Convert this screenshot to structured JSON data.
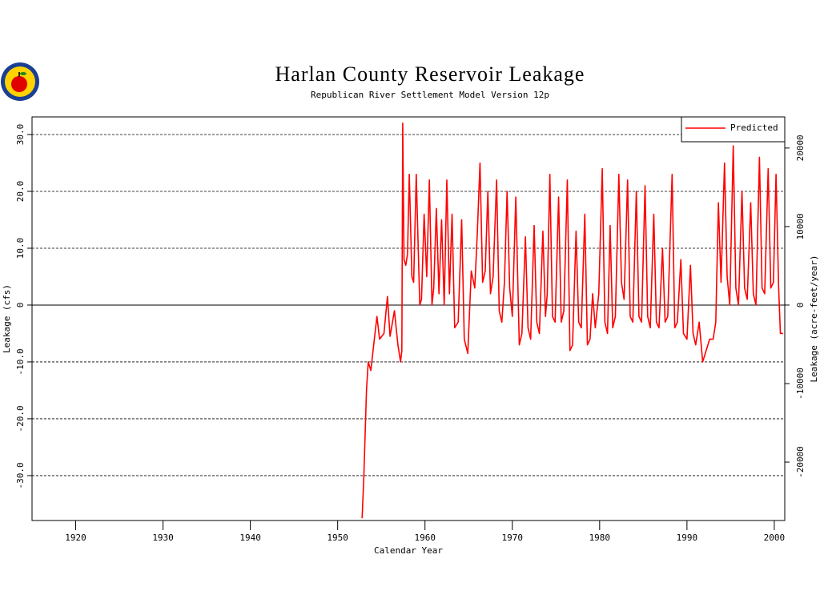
{
  "chart_data": {
    "type": "line",
    "title": "Harlan County Reservoir Leakage",
    "subtitle": "Republican River Settlement Model Version 12p",
    "x_label": "Calendar Year",
    "y_label": "Leakage (cfs)",
    "y2_label": "Leakage (acre-feet/year)",
    "legend": "upper right",
    "grid": true,
    "xlim": [
      1915,
      2001.2
    ],
    "ylim": [
      -37.9,
      33.1
    ],
    "y2lim": [
      -27440,
      23964
    ],
    "xticks": [
      1920,
      1930,
      1940,
      1950,
      1960,
      1970,
      1980,
      1990,
      2000
    ],
    "yticks": [
      {
        "value": -30,
        "label": "-30.0"
      },
      {
        "value": -20,
        "label": "-20.0"
      },
      {
        "value": -10,
        "label": "-10.0"
      },
      0,
      {
        "value": 10,
        "label": "10.0"
      },
      {
        "value": 20,
        "label": "20.0"
      },
      {
        "value": 30,
        "label": "30.0"
      }
    ],
    "y2ticks": [
      -20000,
      -10000,
      0,
      10000,
      20000
    ],
    "x": [
      1952.8,
      1953.0,
      1953.3,
      1953.5,
      1953.8,
      1954.2,
      1954.5,
      1954.8,
      1955.3,
      1955.7,
      1956.0,
      1956.5,
      1956.9,
      1957.2,
      1957.35,
      1957.45,
      1957.6,
      1957.8,
      1958.0,
      1958.2,
      1958.5,
      1958.7,
      1959.0,
      1959.4,
      1959.6,
      1959.9,
      1960.2,
      1960.5,
      1960.8,
      1961.0,
      1961.3,
      1961.6,
      1961.9,
      1962.2,
      1962.5,
      1962.8,
      1963.1,
      1963.4,
      1963.8,
      1964.2,
      1964.5,
      1964.9,
      1965.3,
      1965.7,
      1966.0,
      1966.3,
      1966.6,
      1966.9,
      1967.2,
      1967.5,
      1967.8,
      1968.2,
      1968.5,
      1968.8,
      1969.1,
      1969.4,
      1969.7,
      1970.0,
      1970.4,
      1970.8,
      1971.1,
      1971.5,
      1971.8,
      1972.1,
      1972.5,
      1972.8,
      1973.1,
      1973.5,
      1973.8,
      1974.0,
      1974.3,
      1974.6,
      1974.9,
      1975.3,
      1975.6,
      1975.9,
      1976.3,
      1976.6,
      1976.9,
      1977.3,
      1977.6,
      1977.9,
      1978.3,
      1978.6,
      1978.9,
      1979.2,
      1979.5,
      1979.9,
      1980.3,
      1980.6,
      1980.9,
      1981.2,
      1981.5,
      1981.8,
      1982.2,
      1982.5,
      1982.8,
      1983.2,
      1983.5,
      1983.8,
      1984.2,
      1984.5,
      1984.8,
      1985.2,
      1985.5,
      1985.8,
      1986.2,
      1986.5,
      1986.8,
      1987.2,
      1987.5,
      1987.8,
      1988.3,
      1988.6,
      1988.9,
      1989.3,
      1989.6,
      1990.0,
      1990.4,
      1990.7,
      1991.0,
      1991.4,
      1991.8,
      1992.2,
      1992.6,
      1993.0,
      1993.3,
      1993.6,
      1993.9,
      1994.3,
      1994.6,
      1994.9,
      1995.3,
      1995.6,
      1995.9,
      1996.3,
      1996.6,
      1996.9,
      1997.3,
      1997.6,
      1997.9,
      1998.3,
      1998.6,
      1998.9,
      1999.3,
      1999.6,
      1999.9,
      2000.2,
      2000.5,
      2000.7,
      2001.0
    ],
    "series": [
      {
        "name": "Predicted",
        "color": "#ff0000",
        "values": [
          -37.5,
          -30,
          -15,
          -10,
          -11.5,
          -6,
          -2,
          -6,
          -5,
          1.5,
          -5.5,
          -1,
          -7,
          -10,
          -8,
          32,
          8,
          7,
          9,
          23,
          5,
          4,
          23,
          0,
          1,
          16,
          5,
          22,
          0,
          3,
          17,
          2,
          15,
          0,
          22,
          2,
          16,
          -4,
          -3,
          15,
          -6,
          -8.5,
          6,
          3,
          13,
          25,
          4,
          6,
          20,
          2,
          5,
          22,
          -1,
          -3,
          4,
          20,
          3,
          -2,
          19,
          -7,
          -5,
          12,
          -4,
          -6,
          14,
          -3,
          -5,
          13,
          -2,
          2,
          23,
          -2,
          -3,
          19,
          -3,
          -1,
          22,
          -8,
          -7,
          13,
          -3,
          -4,
          16,
          -7,
          -6,
          2,
          -4,
          2,
          24,
          -3,
          -5,
          14,
          -4,
          -2,
          23,
          4,
          1,
          22,
          -2,
          -3,
          20,
          -2,
          -3,
          21,
          -2,
          -4,
          16,
          -3,
          -4,
          10,
          -3,
          -2,
          23,
          -4,
          -3,
          8,
          -5,
          -6,
          7,
          -5,
          -7,
          -3,
          -10,
          -8,
          -6,
          -6,
          -3,
          18,
          4,
          25,
          5,
          0,
          28,
          3,
          0,
          20,
          3,
          1,
          18,
          2,
          0,
          26,
          3,
          2,
          24,
          3,
          4,
          23,
          3,
          -5,
          -5
        ]
      }
    ]
  }
}
